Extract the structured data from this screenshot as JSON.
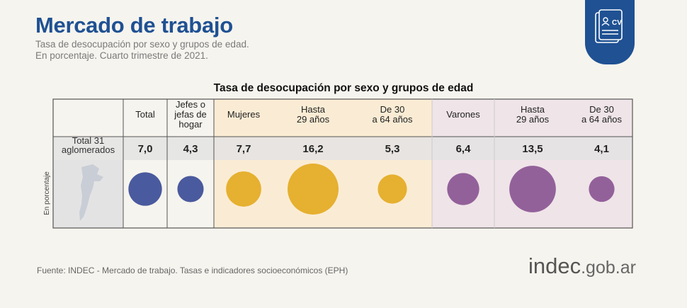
{
  "header": {
    "title": "Mercado de trabajo",
    "subtitle_line1": "Tasa de desocupación por sexo y grupos de edad.",
    "subtitle_line2": "En porcentaje. Cuarto trimestre de 2021."
  },
  "badge": {
    "icon": "cv-document-icon",
    "label": "CV"
  },
  "footer": {
    "source": "Fuente: INDEC - Mercado de trabajo. Tasas e indicadores socioeconómicos (EPH)",
    "brand_main": "indec",
    "brand_domain": ".gob.ar"
  },
  "chart_data": {
    "type": "table",
    "title": "Tasa de desocupación por sexo y grupos de edad",
    "ylabel": "En porcentaje",
    "row_label": [
      "Total 31",
      "aglomerados"
    ],
    "columns": [
      {
        "label": [
          "Total"
        ],
        "value": 7.0,
        "display": "7,0",
        "group": "total"
      },
      {
        "label": [
          "Jefes o",
          "jefas de",
          "hogar"
        ],
        "value": 4.3,
        "display": "4,3",
        "group": "total"
      },
      {
        "label": [
          "Mujeres"
        ],
        "value": 7.7,
        "display": "7,7",
        "group": "mujeres"
      },
      {
        "label": [
          "Hasta",
          "29 años"
        ],
        "value": 16.2,
        "display": "16,2",
        "group": "mujeres"
      },
      {
        "label": [
          "De 30",
          "a 64 años"
        ],
        "value": 5.3,
        "display": "5,3",
        "group": "mujeres"
      },
      {
        "label": [
          "Varones"
        ],
        "value": 6.4,
        "display": "6,4",
        "group": "varones"
      },
      {
        "label": [
          "Hasta",
          "29 años"
        ],
        "value": 13.5,
        "display": "13,5",
        "group": "varones"
      },
      {
        "label": [
          "De 30",
          "a 64 años"
        ],
        "value": 4.1,
        "display": "4,1",
        "group": "varones"
      }
    ],
    "colors": {
      "total": "#4a5a9e",
      "mujeres": "#e6b030",
      "varones": "#93619a",
      "mujeres_bg": "#faecd4",
      "varones_bg": "#efe4e8",
      "row_band": "#e3e3e3",
      "map": "#c9cdd6"
    }
  }
}
